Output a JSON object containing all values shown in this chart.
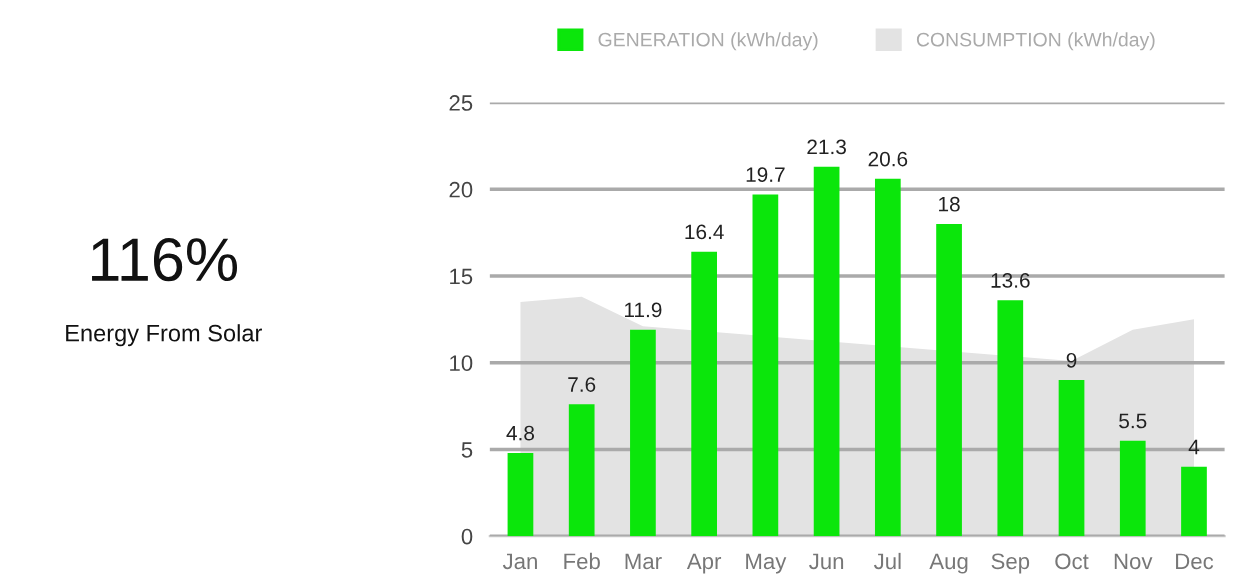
{
  "chart_data": [
    {
      "type": "other",
      "title": "116%",
      "subtitle": "Energy From Solar"
    },
    {
      "type": "bar",
      "categories": [
        "Jan",
        "Feb",
        "Mar",
        "Apr",
        "May",
        "Jun",
        "Jul",
        "Aug",
        "Sep",
        "Oct",
        "Nov",
        "Dec"
      ],
      "series": [
        {
          "name": "GENERATION (kWh/day)",
          "type": "bar",
          "color": "#0be60b",
          "values": [
            4.8,
            7.6,
            11.9,
            16.4,
            19.7,
            21.3,
            20.6,
            18,
            13.6,
            9,
            5.5,
            4
          ],
          "value_labels": [
            "4.8",
            "7.6",
            "11.9",
            "16.4",
            "19.7",
            "21.3",
            "20.6",
            "18",
            "13.6",
            "9",
            "5.5",
            "4"
          ]
        },
        {
          "name": "CONSUMPTION (kWh/day)",
          "type": "area",
          "color": "#e3e3e3",
          "values": [
            13.5,
            13.8,
            12.1,
            null,
            null,
            null,
            null,
            null,
            null,
            10.1,
            11.9,
            12.5
          ]
        }
      ],
      "ylim": [
        0,
        25
      ],
      "yticks": [
        0,
        5,
        10,
        15,
        20,
        25
      ],
      "grid": "y",
      "legend": "top"
    }
  ]
}
